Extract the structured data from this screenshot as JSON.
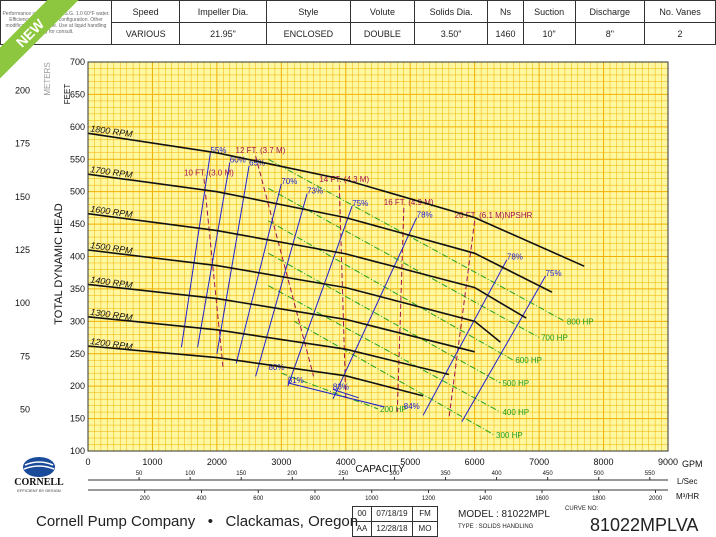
{
  "spec_table": {
    "note": "Performance curves are for S.G. 1.0 60°F water. Efficiency at indicated configuration. Other modifications available. Use at liquid handling only for consult.",
    "headers": [
      "Speed",
      "Impeller Dia.",
      "Style",
      "Volute",
      "Solids Dia.",
      "Ns",
      "Suction",
      "Discharge",
      "No. Vanes"
    ],
    "values": [
      "VARIOUS",
      "21.95\"",
      "ENCLOSED",
      "DOUBLE",
      "3.50\"",
      "1460",
      "10\"",
      "8\"",
      "2"
    ]
  },
  "badge": "NEW",
  "colors": {
    "grid_bg": "#fff8a0",
    "grid_line": "#f0b000",
    "head": "#111111",
    "eff": "#2020d0",
    "npshr": "#a01050",
    "hp": "#20a020"
  },
  "chart_data": {
    "type": "line",
    "xlabel": "CAPACITY",
    "ylabel": "TOTAL DYNAMIC HEAD",
    "y_unit_right": "FEET",
    "y_unit_left": "METERS",
    "xlim": [
      0,
      9000
    ],
    "ylim": [
      100,
      700
    ],
    "x_ticks": [
      0,
      1000,
      2000,
      3000,
      4000,
      5000,
      6000,
      7000,
      8000,
      9000
    ],
    "x_unit": "GPM",
    "y_ticks": [
      100,
      150,
      200,
      250,
      300,
      350,
      400,
      450,
      500,
      550,
      600,
      650,
      700
    ],
    "meter_ticks": [
      50,
      75,
      100,
      125,
      150,
      175,
      200
    ],
    "lsec_ticks": [
      50,
      100,
      150,
      200,
      250,
      300,
      350,
      400,
      450,
      500,
      550
    ],
    "lsec_unit": "L/Sec",
    "m3hr_ticks": [
      200,
      400,
      600,
      800,
      1000,
      1200,
      1400,
      1600,
      1800,
      2000
    ],
    "m3hr_unit": "M³/HR",
    "head_curves": [
      {
        "label": "1800 RPM",
        "points": [
          [
            0,
            590
          ],
          [
            2000,
            560
          ],
          [
            4000,
            518
          ],
          [
            6000,
            460
          ],
          [
            7700,
            385
          ]
        ]
      },
      {
        "label": "1700 RPM",
        "points": [
          [
            0,
            527
          ],
          [
            2000,
            500
          ],
          [
            4000,
            460
          ],
          [
            6000,
            405
          ],
          [
            7200,
            345
          ]
        ]
      },
      {
        "label": "1600 RPM",
        "points": [
          [
            0,
            466
          ],
          [
            2000,
            440
          ],
          [
            4000,
            404
          ],
          [
            6000,
            352
          ],
          [
            6800,
            305
          ]
        ]
      },
      {
        "label": "1500 RPM",
        "points": [
          [
            0,
            410
          ],
          [
            2000,
            386
          ],
          [
            4000,
            352
          ],
          [
            6000,
            300
          ],
          [
            6400,
            268
          ]
        ]
      },
      {
        "label": "1400 RPM",
        "points": [
          [
            0,
            357
          ],
          [
            2000,
            335
          ],
          [
            4000,
            303
          ],
          [
            6000,
            253
          ]
        ]
      },
      {
        "label": "1300 RPM",
        "points": [
          [
            0,
            307
          ],
          [
            2000,
            287
          ],
          [
            4000,
            257
          ],
          [
            5600,
            218
          ]
        ]
      },
      {
        "label": "1200 RPM",
        "points": [
          [
            0,
            262
          ],
          [
            2000,
            244
          ],
          [
            4000,
            216
          ],
          [
            5200,
            185
          ]
        ]
      }
    ],
    "efficiency_curves": [
      {
        "label": "55%",
        "points": [
          [
            1900,
            560
          ],
          [
            1450,
            260
          ]
        ]
      },
      {
        "label": "60%",
        "points": [
          [
            2200,
            545
          ],
          [
            1700,
            260
          ]
        ]
      },
      {
        "label": "65%",
        "points": [
          [
            2500,
            540
          ],
          [
            2000,
            250
          ]
        ]
      },
      {
        "label": "70%",
        "points": [
          [
            3000,
            512
          ],
          [
            2300,
            235
          ]
        ]
      },
      {
        "label": "73%",
        "points": [
          [
            3400,
            497
          ],
          [
            2600,
            215
          ]
        ]
      },
      {
        "label": "75%",
        "points": [
          [
            4100,
            478
          ],
          [
            3100,
            200
          ]
        ]
      },
      {
        "label": "78%",
        "points": [
          [
            5100,
            460
          ],
          [
            3800,
            180
          ]
        ]
      },
      {
        "label": "80%",
        "points": [
          [
            2800,
            225
          ]
        ]
      },
      {
        "label": "81%",
        "points": [
          [
            3100,
            205
          ],
          [
            4600,
            168
          ]
        ]
      },
      {
        "label": "83%",
        "points": [
          [
            3800,
            195
          ],
          [
            4200,
            182
          ]
        ]
      },
      {
        "label": "84%",
        "points": [
          [
            4900,
            165
          ]
        ]
      },
      {
        "label": "78%",
        "points": [
          [
            6500,
            395
          ],
          [
            5200,
            155
          ]
        ]
      },
      {
        "label": "75%",
        "points": [
          [
            7100,
            370
          ],
          [
            5800,
            145
          ]
        ]
      }
    ],
    "npshr_curves": [
      {
        "label": "10 FT. (3.0 M)",
        "points": [
          [
            1800,
            520
          ],
          [
            2100,
            225
          ]
        ]
      },
      {
        "label": "12 FT. (3.7 M)",
        "points": [
          [
            2600,
            555
          ],
          [
            3500,
            215
          ]
        ]
      },
      {
        "label": "14 FT. (4.3 M)",
        "points": [
          [
            3900,
            510
          ],
          [
            4000,
            180
          ]
        ]
      },
      {
        "label": "16 FT. (4.9 M)",
        "points": [
          [
            4900,
            475
          ],
          [
            4800,
            160
          ]
        ]
      },
      {
        "label": "20 FT. (6.1 M)NPSHR",
        "points": [
          [
            6000,
            455
          ],
          [
            5600,
            150
          ]
        ]
      }
    ],
    "hp_curves": [
      {
        "label": "800 HP",
        "points": [
          [
            2800,
            550
          ],
          [
            7400,
            300
          ]
        ]
      },
      {
        "label": "700 HP",
        "points": [
          [
            2800,
            505
          ],
          [
            7000,
            275
          ]
        ]
      },
      {
        "label": "600 HP",
        "points": [
          [
            2800,
            455
          ],
          [
            6600,
            240
          ]
        ]
      },
      {
        "label": "500 HP",
        "points": [
          [
            2800,
            405
          ],
          [
            6400,
            205
          ]
        ]
      },
      {
        "label": "400 HP",
        "points": [
          [
            2800,
            355
          ],
          [
            6400,
            160
          ]
        ]
      },
      {
        "label": "300 HP",
        "points": [
          [
            3200,
            300
          ],
          [
            6300,
            125
          ]
        ]
      },
      {
        "label": "200 HP",
        "points": [
          [
            3000,
            220
          ],
          [
            4500,
            165
          ]
        ]
      }
    ]
  },
  "footer": {
    "company": "Cornell Pump Company",
    "bullet": "•",
    "location": "Clackamas, Oregon",
    "rev_codes": [
      "00",
      "AA"
    ],
    "rev_dates": [
      "07/18/19",
      "12/28/18"
    ],
    "rev_inits": [
      "FM",
      "MO"
    ],
    "model": "MODEL : 81022MPL",
    "type": "TYPE : SOLIDS HANDLING",
    "curve_label": "CURVE NO:",
    "curve_no": "81022MPLVA",
    "logo_text": "CORNELL",
    "logo_sub": "EFFICIENT BY DESIGN"
  }
}
